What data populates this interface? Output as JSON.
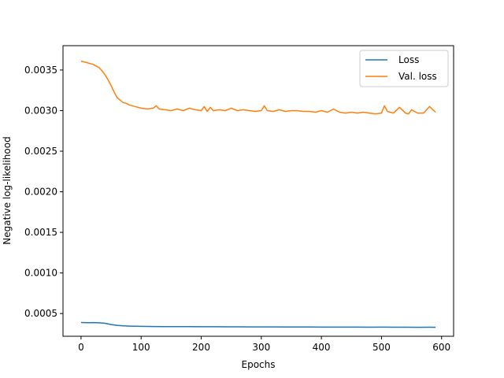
{
  "chart_data": {
    "type": "line",
    "title": "",
    "xlabel": "Epochs",
    "ylabel": "Negative log-likelihood",
    "xlim": [
      -30,
      620
    ],
    "ylim": [
      0.00022,
      0.0038
    ],
    "x_ticks": [
      0,
      100,
      200,
      300,
      400,
      500,
      600
    ],
    "y_ticks": [
      0.0005,
      0.001,
      0.0015,
      0.002,
      0.0025,
      0.003,
      0.0035
    ],
    "y_tick_labels": [
      "0.0005",
      "0.0010",
      "0.0015",
      "0.0020",
      "0.0025",
      "0.0030",
      "0.0035"
    ],
    "grid": false,
    "legend_position": "top-right",
    "series": [
      {
        "name": "Loss",
        "color": "#1f77b4",
        "x": [
          0,
          10,
          20,
          30,
          40,
          50,
          60,
          70,
          80,
          90,
          100,
          120,
          140,
          160,
          180,
          200,
          220,
          240,
          260,
          280,
          300,
          320,
          340,
          360,
          380,
          400,
          420,
          440,
          460,
          480,
          500,
          520,
          540,
          560,
          580,
          590
        ],
        "y": [
          0.00039,
          0.000388,
          0.000389,
          0.000386,
          0.00038,
          0.000365,
          0.000355,
          0.000348,
          0.000345,
          0.000343,
          0.000342,
          0.00034,
          0.000339,
          0.000338,
          0.000338,
          0.000337,
          0.000337,
          0.000336,
          0.000336,
          0.000335,
          0.000335,
          0.000335,
          0.000334,
          0.000334,
          0.000334,
          0.000333,
          0.000333,
          0.000333,
          0.000333,
          0.000332,
          0.000333,
          0.000332,
          0.000332,
          0.000331,
          0.000332,
          0.000331
        ]
      },
      {
        "name": "Val. loss",
        "color": "#ff7f0e",
        "x": [
          0,
          5,
          10,
          15,
          20,
          25,
          30,
          35,
          40,
          45,
          50,
          55,
          60,
          65,
          70,
          75,
          80,
          85,
          90,
          95,
          100,
          110,
          120,
          125,
          130,
          140,
          150,
          160,
          170,
          180,
          190,
          200,
          205,
          210,
          215,
          220,
          230,
          240,
          250,
          260,
          270,
          280,
          290,
          300,
          305,
          310,
          320,
          330,
          340,
          350,
          360,
          370,
          380,
          390,
          400,
          410,
          420,
          430,
          440,
          450,
          460,
          470,
          480,
          490,
          500,
          505,
          510,
          520,
          530,
          540,
          545,
          550,
          560,
          570,
          580,
          590
        ],
        "y": [
          0.00361,
          0.0036,
          0.00359,
          0.00358,
          0.00357,
          0.00355,
          0.00353,
          0.00349,
          0.00344,
          0.00338,
          0.00331,
          0.00323,
          0.00316,
          0.00313,
          0.0031,
          0.00309,
          0.00307,
          0.00306,
          0.00305,
          0.00304,
          0.00303,
          0.00302,
          0.00303,
          0.00306,
          0.00302,
          0.00301,
          0.003,
          0.00302,
          0.003,
          0.00303,
          0.00301,
          0.003,
          0.00305,
          0.00299,
          0.00304,
          0.003,
          0.00301,
          0.003,
          0.00303,
          0.003,
          0.00301,
          0.003,
          0.00299,
          0.003,
          0.00306,
          0.003,
          0.00299,
          0.00301,
          0.00299,
          0.003,
          0.003,
          0.00299,
          0.00299,
          0.00298,
          0.003,
          0.00298,
          0.00302,
          0.00298,
          0.00297,
          0.00298,
          0.00297,
          0.00298,
          0.00297,
          0.00296,
          0.00297,
          0.00306,
          0.00299,
          0.00297,
          0.00304,
          0.00297,
          0.00296,
          0.00301,
          0.00297,
          0.00297,
          0.00305,
          0.00298
        ]
      }
    ]
  }
}
